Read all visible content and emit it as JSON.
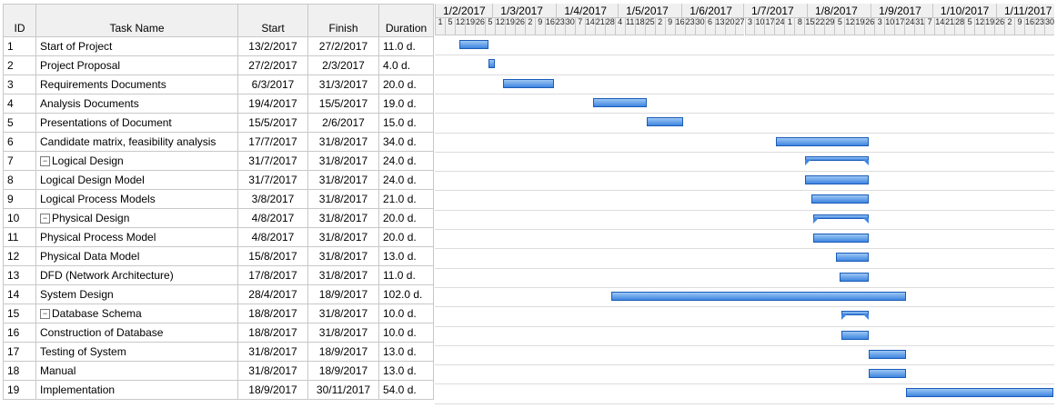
{
  "columns": {
    "id": "ID",
    "name": "Task Name",
    "start": "Start",
    "finish": "Finish",
    "duration": "Duration"
  },
  "tasks": [
    {
      "id": "1",
      "name": "Start of Project",
      "start": "13/2/2017",
      "finish": "27/2/2017",
      "duration": "11.0 d.",
      "level": 1,
      "summary": false
    },
    {
      "id": "2",
      "name": "Project Proposal",
      "start": "27/2/2017",
      "finish": "2/3/2017",
      "duration": "4.0 d.",
      "level": 1,
      "summary": false
    },
    {
      "id": "3",
      "name": "Requirements Documents",
      "start": "6/3/2017",
      "finish": "31/3/2017",
      "duration": "20.0 d.",
      "level": 1,
      "summary": false
    },
    {
      "id": "4",
      "name": "Analysis Documents",
      "start": "19/4/2017",
      "finish": "15/5/2017",
      "duration": "19.0 d.",
      "level": 1,
      "summary": false
    },
    {
      "id": "5",
      "name": "Presentations of Document",
      "start": "15/5/2017",
      "finish": "2/6/2017",
      "duration": "15.0 d.",
      "level": 1,
      "summary": false
    },
    {
      "id": "6",
      "name": "Candidate matrix, feasibility analysis",
      "start": "17/7/2017",
      "finish": "31/8/2017",
      "duration": "34.0 d.",
      "level": 1,
      "summary": false
    },
    {
      "id": "7",
      "name": "Logical Design",
      "start": "31/7/2017",
      "finish": "31/8/2017",
      "duration": "24.0 d.",
      "level": 0,
      "summary": true
    },
    {
      "id": "8",
      "name": "Logical Design Model",
      "start": "31/7/2017",
      "finish": "31/8/2017",
      "duration": "24.0 d.",
      "level": 2,
      "summary": false
    },
    {
      "id": "9",
      "name": "Logical Process Models",
      "start": "3/8/2017",
      "finish": "31/8/2017",
      "duration": "21.0 d.",
      "level": 2,
      "summary": false
    },
    {
      "id": "10",
      "name": "Physical Design",
      "start": "4/8/2017",
      "finish": "31/8/2017",
      "duration": "20.0 d.",
      "level": 0,
      "summary": true
    },
    {
      "id": "11",
      "name": "Physical Process Model",
      "start": "4/8/2017",
      "finish": "31/8/2017",
      "duration": "20.0 d.",
      "level": 2,
      "summary": false
    },
    {
      "id": "12",
      "name": "Physical Data Model",
      "start": "15/8/2017",
      "finish": "31/8/2017",
      "duration": "13.0 d.",
      "level": 2,
      "summary": false
    },
    {
      "id": "13",
      "name": "DFD (Network Architecture)",
      "start": "17/8/2017",
      "finish": "31/8/2017",
      "duration": "11.0 d.",
      "level": 2,
      "summary": false
    },
    {
      "id": "14",
      "name": "System Design",
      "start": "28/4/2017",
      "finish": "18/9/2017",
      "duration": "102.0 d.",
      "level": 1,
      "summary": false
    },
    {
      "id": "15",
      "name": "Database Schema",
      "start": "18/8/2017",
      "finish": "31/8/2017",
      "duration": "10.0 d.",
      "level": 0,
      "summary": true
    },
    {
      "id": "16",
      "name": "Construction of Database",
      "start": "18/8/2017",
      "finish": "31/8/2017",
      "duration": "10.0 d.",
      "level": 2,
      "summary": false
    },
    {
      "id": "17",
      "name": "Testing of System",
      "start": "31/8/2017",
      "finish": "18/9/2017",
      "duration": "13.0 d.",
      "level": 1,
      "summary": false
    },
    {
      "id": "18",
      "name": "Manual",
      "start": "31/8/2017",
      "finish": "18/9/2017",
      "duration": "13.0 d.",
      "level": 1,
      "summary": false
    },
    {
      "id": "19",
      "name": "Implementation",
      "start": "18/9/2017",
      "finish": "30/11/2017",
      "duration": "54.0 d.",
      "level": 1,
      "summary": false
    }
  ],
  "timeline": {
    "months": [
      "1/2/2017",
      "1/3/2017",
      "1/4/2017",
      "1/5/2017",
      "1/6/2017",
      "1/7/2017",
      "1/8/2017",
      "1/9/2017",
      "1/10/2017",
      "1/11/2017"
    ],
    "tick_labels": [
      "1",
      "5",
      "12",
      "19",
      "26",
      "5",
      "12",
      "19",
      "26",
      "2",
      "9",
      "16",
      "23",
      "30",
      "7",
      "14",
      "21",
      "28",
      "4",
      "11",
      "18",
      "25",
      "2",
      "9",
      "16",
      "23",
      "30",
      "6",
      "13",
      "20",
      "27",
      "3",
      "10",
      "17",
      "24",
      "1",
      "8",
      "15",
      "22",
      "29",
      "5",
      "12",
      "19",
      "26",
      "3",
      "10",
      "17",
      "24",
      "31",
      "7",
      "14",
      "21",
      "28",
      "5",
      "12",
      "19",
      "26",
      "2",
      "9",
      "16",
      "23",
      "30"
    ]
  },
  "colors": {
    "bar": "#3f86e0",
    "bar_border": "#1a5bb8",
    "header_bg": "#f0f0f0",
    "grid": "#c8c8c8"
  },
  "icons": {
    "collapse": "minus-box-icon"
  }
}
